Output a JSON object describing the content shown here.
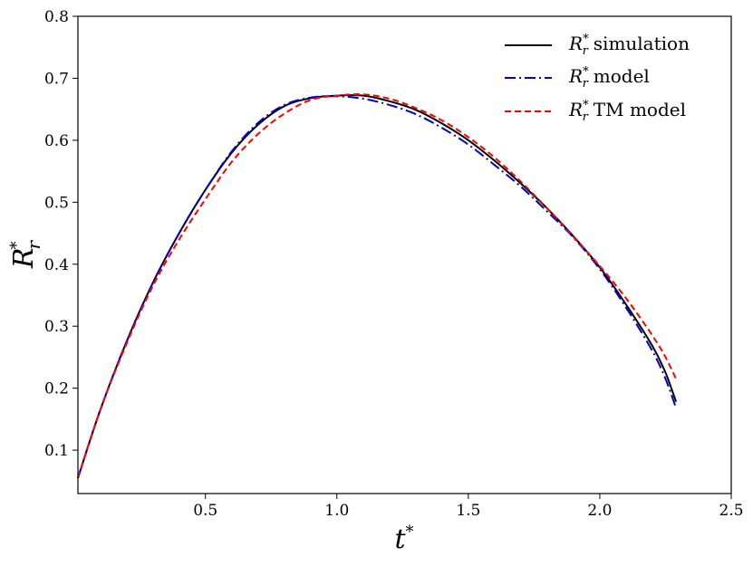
{
  "chart_data": {
    "type": "line",
    "xlabel": {
      "base": "t",
      "sup": "*"
    },
    "ylabel": {
      "base": "R",
      "sub": "r",
      "sup": "*"
    },
    "xlim": [
      0.015,
      2.5
    ],
    "ylim": [
      0.03,
      0.8
    ],
    "xticks": [
      0.5,
      1.0,
      1.5,
      2.0,
      2.5
    ],
    "xtick_labels": [
      "0.5",
      "1.0",
      "1.5",
      "2.0",
      "2.5"
    ],
    "yticks": [
      0.1,
      0.2,
      0.3,
      0.4,
      0.5,
      0.6,
      0.7,
      0.8
    ],
    "ytick_labels": [
      "0.1",
      "0.2",
      "0.3",
      "0.4",
      "0.5",
      "0.6",
      "0.7",
      "0.8"
    ],
    "grid": false,
    "legend_position": "top-right",
    "series": [
      {
        "name": "simulation",
        "legend_symbol": {
          "base": "R",
          "sub": "r",
          "sup": "*"
        },
        "color": "#000000",
        "dash": "solid",
        "x": [
          0.015,
          0.1,
          0.2,
          0.3,
          0.4,
          0.5,
          0.6,
          0.7,
          0.8,
          0.9,
          1.0,
          1.1,
          1.2,
          1.3,
          1.4,
          1.5,
          1.6,
          1.7,
          1.8,
          1.9,
          2.0,
          2.1,
          2.2,
          2.25,
          2.29
        ],
        "y": [
          0.055,
          0.165,
          0.275,
          0.37,
          0.45,
          0.52,
          0.58,
          0.625,
          0.655,
          0.668,
          0.672,
          0.672,
          0.663,
          0.649,
          0.627,
          0.6,
          0.567,
          0.53,
          0.49,
          0.445,
          0.395,
          0.335,
          0.268,
          0.225,
          0.178
        ]
      },
      {
        "name": "model",
        "legend_symbol": {
          "base": "R",
          "sub": "r",
          "sup": "*"
        },
        "color": "#0000cc",
        "dash": "dashdot",
        "x": [
          0.015,
          0.1,
          0.2,
          0.3,
          0.4,
          0.5,
          0.6,
          0.7,
          0.8,
          0.9,
          1.0,
          1.1,
          1.2,
          1.3,
          1.4,
          1.5,
          1.6,
          1.7,
          1.8,
          1.9,
          2.0,
          2.1,
          2.2,
          2.25,
          2.29
        ],
        "y": [
          0.055,
          0.165,
          0.275,
          0.37,
          0.45,
          0.52,
          0.582,
          0.628,
          0.657,
          0.669,
          0.671,
          0.667,
          0.657,
          0.642,
          0.62,
          0.593,
          0.56,
          0.525,
          0.485,
          0.443,
          0.392,
          0.33,
          0.26,
          0.215,
          0.168
        ]
      },
      {
        "name": "TM model",
        "legend_symbol": {
          "base": "R",
          "sub": "r",
          "sup": "*"
        },
        "color": "#ff0000",
        "dash": "dashed",
        "x": [
          0.015,
          0.1,
          0.2,
          0.3,
          0.4,
          0.5,
          0.6,
          0.7,
          0.8,
          0.9,
          1.0,
          1.1,
          1.2,
          1.3,
          1.4,
          1.5,
          1.6,
          1.7,
          1.8,
          1.9,
          2.0,
          2.1,
          2.2,
          2.25,
          2.29
        ],
        "y": [
          0.055,
          0.165,
          0.272,
          0.365,
          0.44,
          0.505,
          0.565,
          0.61,
          0.643,
          0.665,
          0.672,
          0.674,
          0.667,
          0.652,
          0.632,
          0.605,
          0.572,
          0.533,
          0.49,
          0.444,
          0.397,
          0.345,
          0.285,
          0.25,
          0.215
        ]
      }
    ]
  }
}
